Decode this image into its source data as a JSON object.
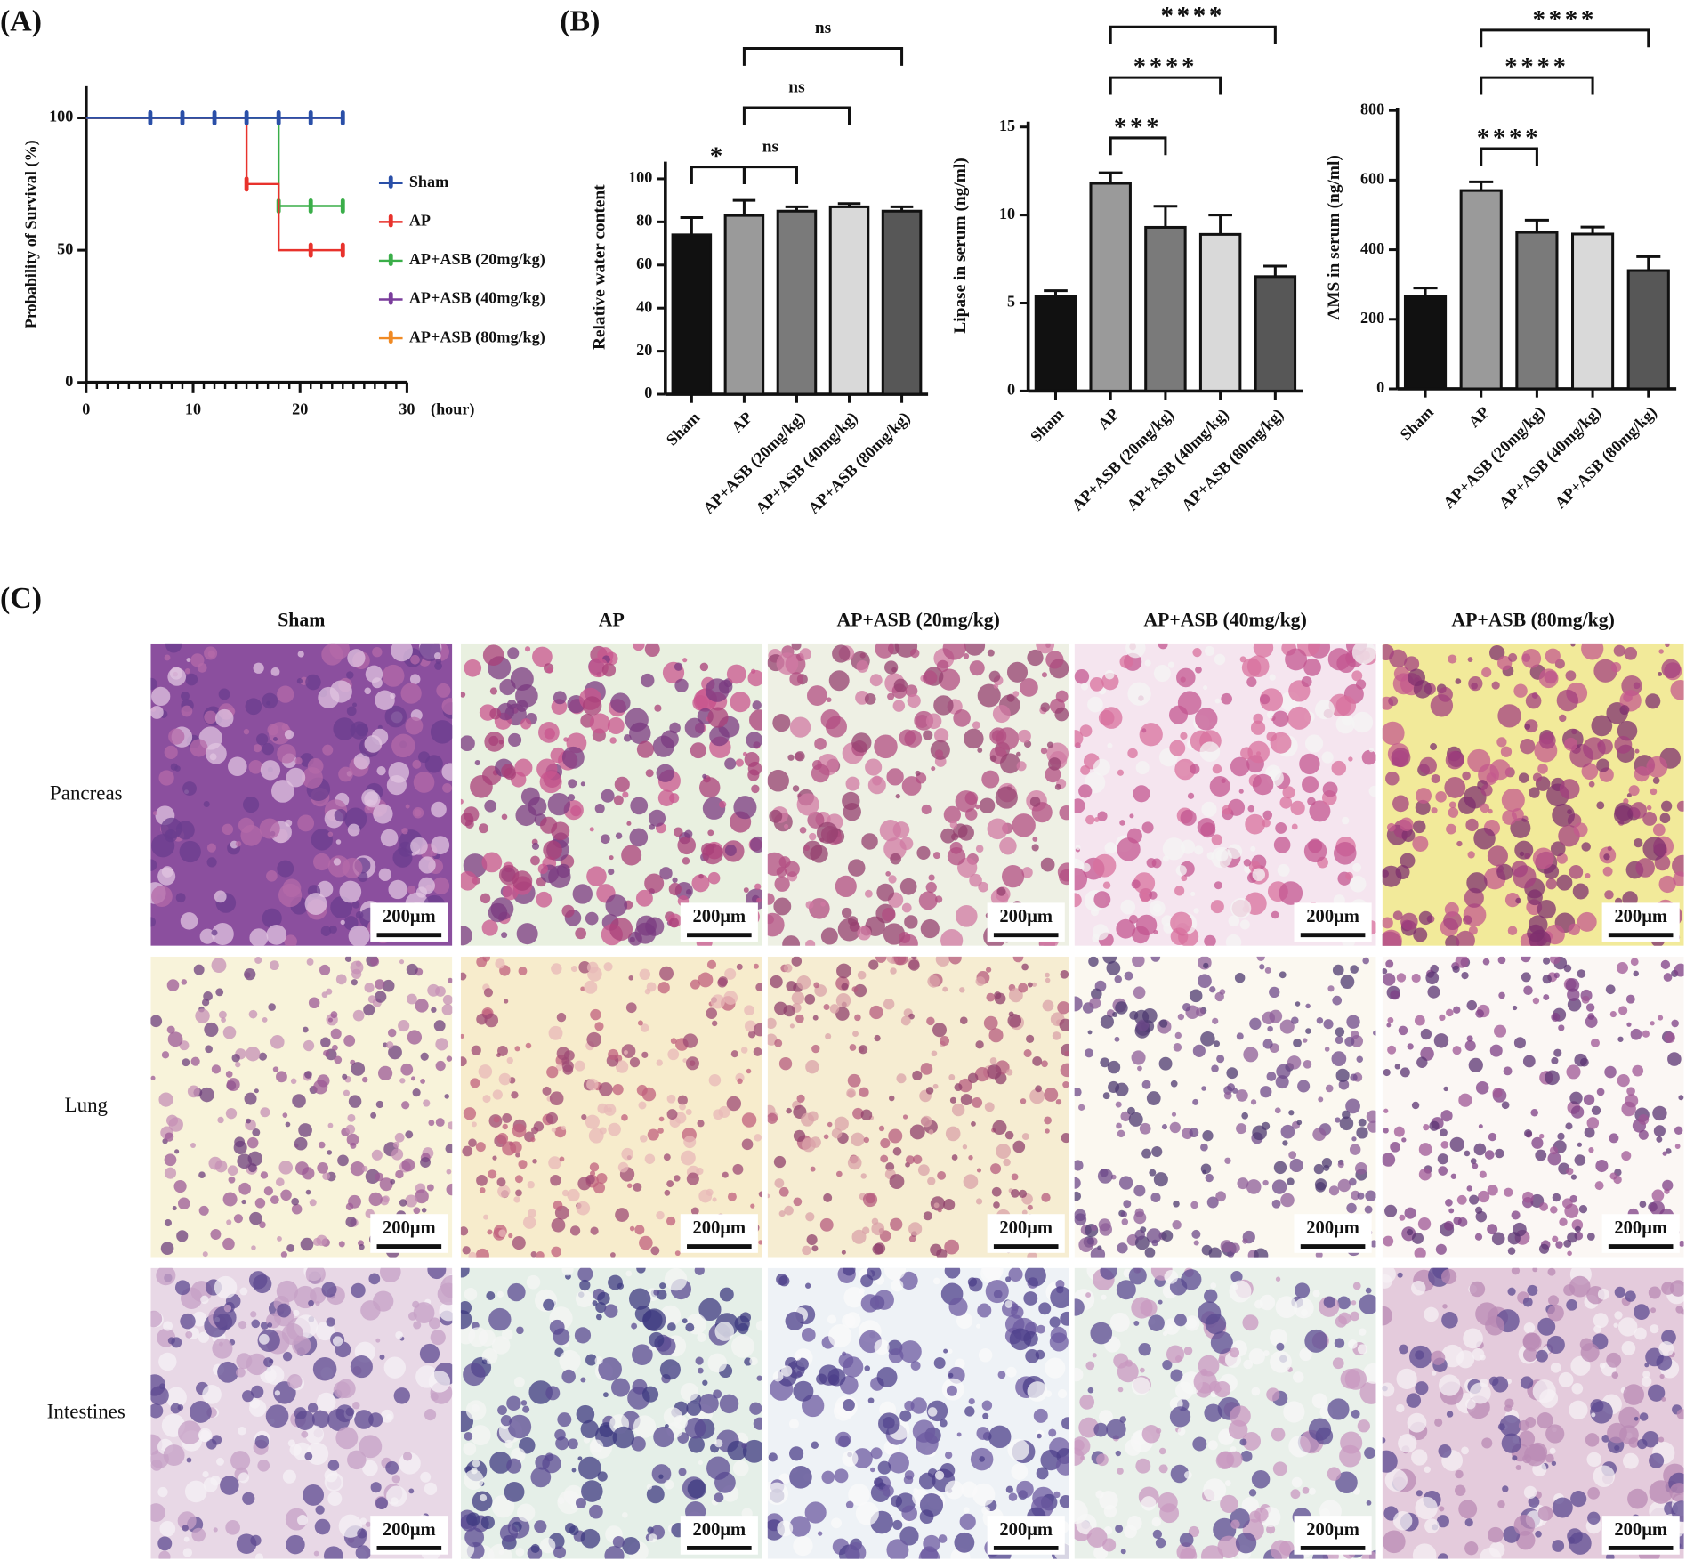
{
  "panel_labels": [
    "(A)",
    "(B)",
    "(C)"
  ],
  "chart_data": [
    {
      "type": "line",
      "step": true,
      "ylabel": "Probability of Survival (%)",
      "xlabel": "(hour)",
      "xlim": [
        0,
        30
      ],
      "xticks": [
        0,
        10,
        20,
        30
      ],
      "ylim": [
        0,
        112
      ],
      "yticks": [
        0,
        50,
        100
      ],
      "series": [
        {
          "name": "Sham",
          "color": "#2a4fa8",
          "x": [
            0,
            24
          ],
          "values": [
            100,
            100
          ],
          "censored": [
            6,
            9,
            12,
            15,
            18,
            21,
            24
          ]
        },
        {
          "name": "AP",
          "color": "#e8322c",
          "x": [
            0,
            15,
            15,
            18,
            18,
            24
          ],
          "values": [
            100,
            100,
            75,
            75,
            50,
            50
          ],
          "censored": [
            15,
            21,
            24
          ]
        },
        {
          "name": "AP+ASB (20mg/kg)",
          "color": "#3aae49",
          "x": [
            0,
            18,
            18,
            24
          ],
          "values": [
            100,
            100,
            66.7,
            66.7
          ],
          "censored": [
            18,
            21,
            24
          ]
        },
        {
          "name": "AP+ASB (40mg/kg)",
          "color": "#7a3d9c",
          "x": [
            0,
            24
          ],
          "values": [
            100,
            100
          ],
          "censored": []
        },
        {
          "name": "AP+ASB (80mg/kg)",
          "color": "#f08a24",
          "x": [
            0,
            24
          ],
          "values": [
            100,
            100
          ],
          "censored": []
        }
      ]
    },
    {
      "type": "bar",
      "ylabel": "Relative water content",
      "categories": [
        "Sham",
        "AP",
        "AP+ASB (20mg/kg)",
        "AP+ASB (40mg/kg)",
        "AP+ASB (80mg/kg)"
      ],
      "values": [
        74,
        83,
        85,
        87,
        85
      ],
      "errors": [
        8,
        7,
        2,
        1.5,
        2
      ],
      "colors": [
        "#111111",
        "#9a9a9a",
        "#7a7a7a",
        "#d9d9d9",
        "#575757"
      ],
      "ylim": [
        0,
        108
      ],
      "yticks": [
        0,
        20,
        40,
        60,
        80,
        100
      ],
      "comparisons": [
        {
          "pair": [
            0,
            1
          ],
          "label": "*"
        },
        {
          "pair": [
            1,
            2
          ],
          "label": "ns"
        },
        {
          "pair": [
            1,
            3
          ],
          "label": "ns"
        },
        {
          "pair": [
            1,
            4
          ],
          "label": "ns"
        }
      ]
    },
    {
      "type": "bar",
      "ylabel": "Lipase in serum (ng/ml)",
      "categories": [
        "Sham",
        "AP",
        "AP+ASB (20mg/kg)",
        "AP+ASB (40mg/kg)",
        "AP+ASB (80mg/kg)"
      ],
      "values": [
        5.4,
        11.8,
        9.3,
        8.9,
        6.5
      ],
      "errors": [
        0.3,
        0.6,
        1.2,
        1.1,
        0.6
      ],
      "colors": [
        "#111111",
        "#9a9a9a",
        "#7a7a7a",
        "#d9d9d9",
        "#575757"
      ],
      "ylim": [
        0,
        15.3
      ],
      "yticks": [
        0,
        5,
        10,
        15
      ],
      "comparisons": [
        {
          "pair": [
            1,
            2
          ],
          "label": "***"
        },
        {
          "pair": [
            1,
            3
          ],
          "label": "****"
        },
        {
          "pair": [
            1,
            4
          ],
          "label": "****"
        }
      ]
    },
    {
      "type": "bar",
      "ylabel": "AMS in serum (ng/ml)",
      "categories": [
        "Sham",
        "AP",
        "AP+ASB (20mg/kg)",
        "AP+ASB (40mg/kg)",
        "AP+ASB (80mg/kg)"
      ],
      "values": [
        265,
        570,
        450,
        445,
        340
      ],
      "errors": [
        25,
        25,
        35,
        20,
        40
      ],
      "colors": [
        "#111111",
        "#9a9a9a",
        "#7a7a7a",
        "#d9d9d9",
        "#575757"
      ],
      "ylim": [
        0,
        808
      ],
      "yticks": [
        0,
        200,
        400,
        600,
        800
      ],
      "comparisons": [
        {
          "pair": [
            1,
            2
          ],
          "label": "****"
        },
        {
          "pair": [
            1,
            3
          ],
          "label": "****"
        },
        {
          "pair": [
            1,
            4
          ],
          "label": "****"
        }
      ]
    }
  ],
  "panel_c": {
    "columns": [
      "Sham",
      "AP",
      "AP+ASB (20mg/kg)",
      "AP+ASB (40mg/kg)",
      "AP+ASB (80mg/kg)"
    ],
    "rows": [
      "Pancreas",
      "Lung",
      "Intestines"
    ],
    "scale_bar": "200μm"
  }
}
